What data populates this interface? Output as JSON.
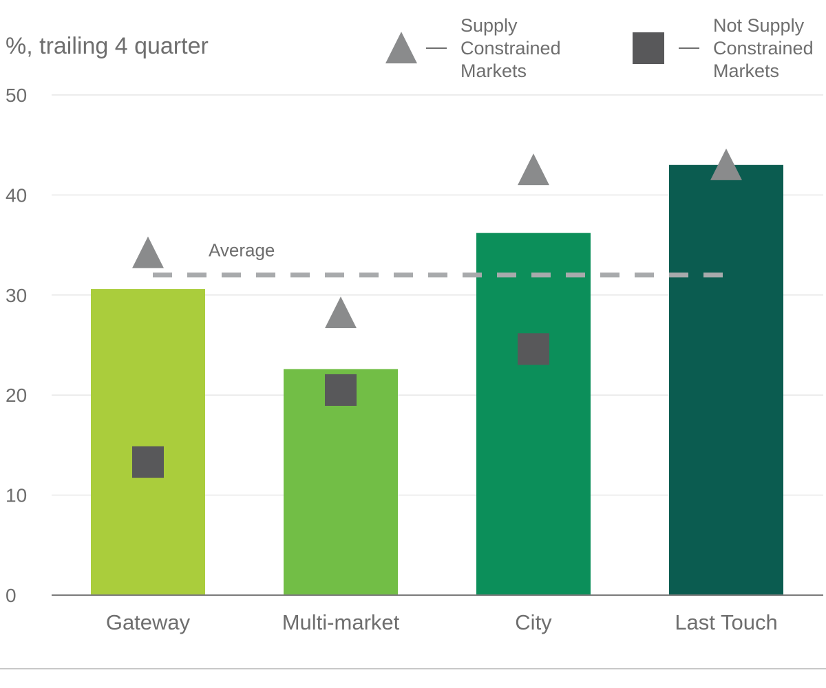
{
  "chart_data": {
    "type": "bar",
    "y_unit_label": "%, trailing 4 quarter",
    "categories": [
      "Gateway",
      "Multi-market",
      "City",
      "Last Touch"
    ],
    "values": [
      30.6,
      22.6,
      36.2,
      43.0
    ],
    "bar_colors": [
      "#aacd3c",
      "#72be46",
      "#0c8f5a",
      "#0b5c50"
    ],
    "markers": [
      {
        "name": "Supply Constrained Markets",
        "shape": "triangle",
        "color": "#8a8b8c",
        "values": [
          34.2,
          28.2,
          42.5,
          43.0
        ]
      },
      {
        "name": "Not Supply Constrained Markets",
        "shape": "square",
        "color": "#58585a",
        "values": [
          13.3,
          20.5,
          24.6,
          null
        ]
      }
    ],
    "legend": [
      {
        "shape": "triangle",
        "label_lines": [
          "Supply",
          "Constrained",
          "Markets"
        ]
      },
      {
        "shape": "square",
        "label_lines": [
          "Not Supply",
          "Constrained",
          "Markets"
        ]
      }
    ],
    "reference_line": {
      "label": "Average",
      "value": 32.0,
      "color": "#a8aaac",
      "style": "dashed"
    },
    "yticks": [
      0,
      10,
      20,
      30,
      40,
      50
    ],
    "ylim": [
      0,
      50
    ],
    "grid": true,
    "legend_position": "top-right"
  }
}
